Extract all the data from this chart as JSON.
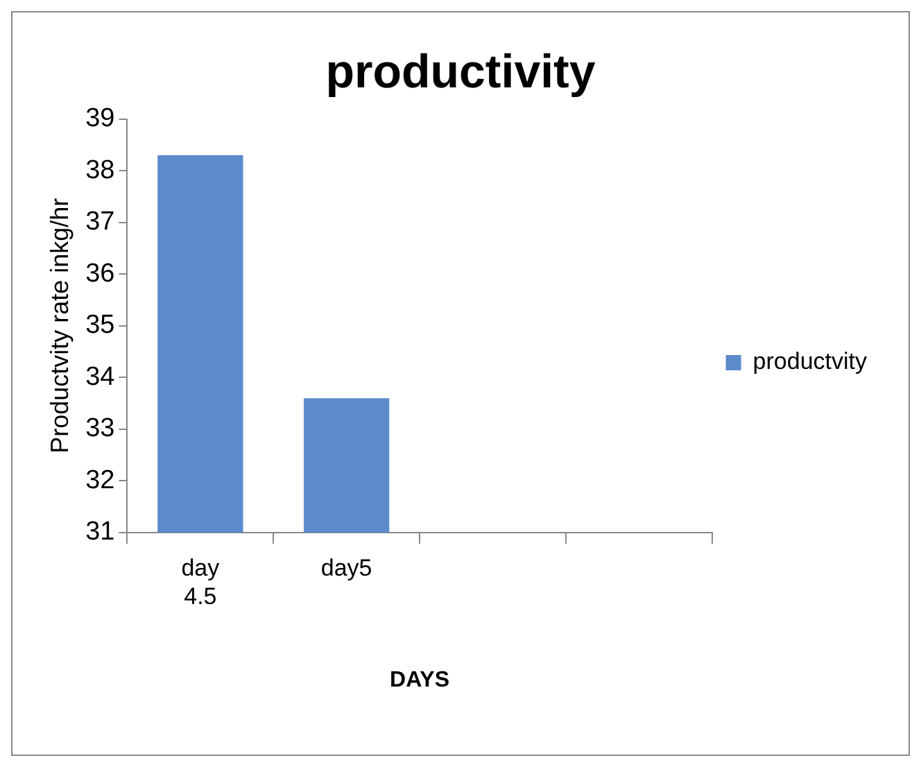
{
  "chart_data": {
    "type": "bar",
    "title": "productivity",
    "xlabel": "DAYS",
    "ylabel": "Productvity rate inkg/hr",
    "categories": [
      "day 4.5",
      "day5",
      null,
      null
    ],
    "series": [
      {
        "name": "productvity",
        "color": "#5b8bcb",
        "values": [
          38.3,
          33.6,
          null,
          null
        ]
      }
    ],
    "ylim": [
      31,
      39
    ],
    "yticks": [
      31,
      32,
      33,
      34,
      35,
      36,
      37,
      38,
      39
    ],
    "grid": false,
    "legend": "right"
  }
}
